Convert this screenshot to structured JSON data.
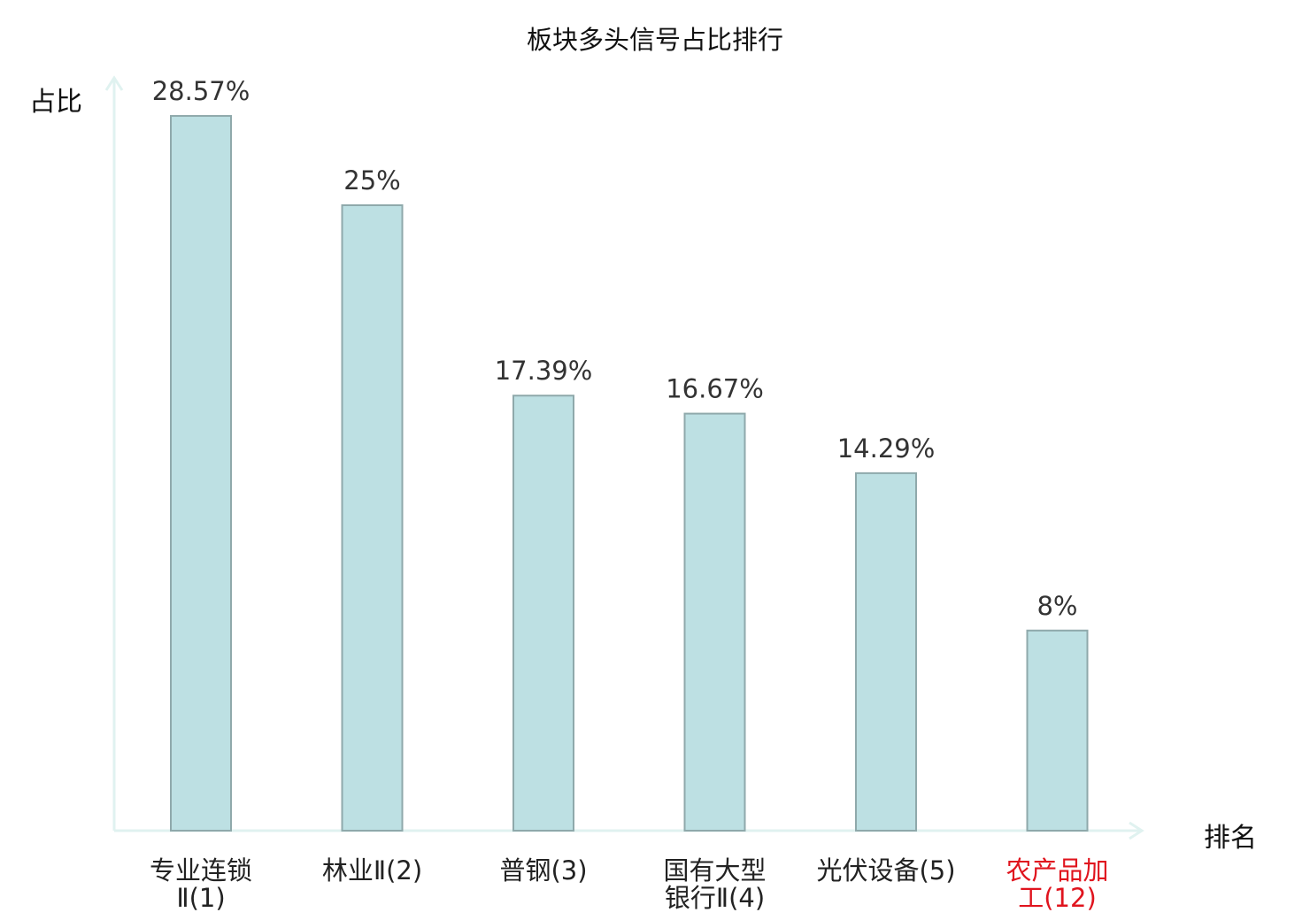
{
  "chart_data": {
    "type": "bar",
    "title": "板块多头信号占比排行",
    "xlabel": "排名",
    "ylabel": "占比",
    "categories": [
      [
        "专业连锁",
        "Ⅱ(1)"
      ],
      [
        "林业Ⅱ(2)"
      ],
      [
        "普钢(3)"
      ],
      [
        "国有大型",
        "银行Ⅱ(4)"
      ],
      [
        "光伏设备(5)"
      ],
      [
        "农产品加",
        "工(12)"
      ]
    ],
    "values": [
      28.57,
      25,
      17.39,
      16.67,
      14.29,
      8
    ],
    "value_labels": [
      "28.57%",
      "25%",
      "17.39%",
      "16.67%",
      "14.29%",
      "8%"
    ],
    "highlight_index": 5,
    "ylim": [
      0,
      30
    ],
    "grid": false,
    "legend": "none",
    "colors": {
      "bar_fill": "#bde0e3",
      "bar_stroke": "#8fa9ab",
      "axis": "#e0f2f0",
      "label": "#222222",
      "value_label": "#333333",
      "highlight": "#e0141e"
    }
  }
}
